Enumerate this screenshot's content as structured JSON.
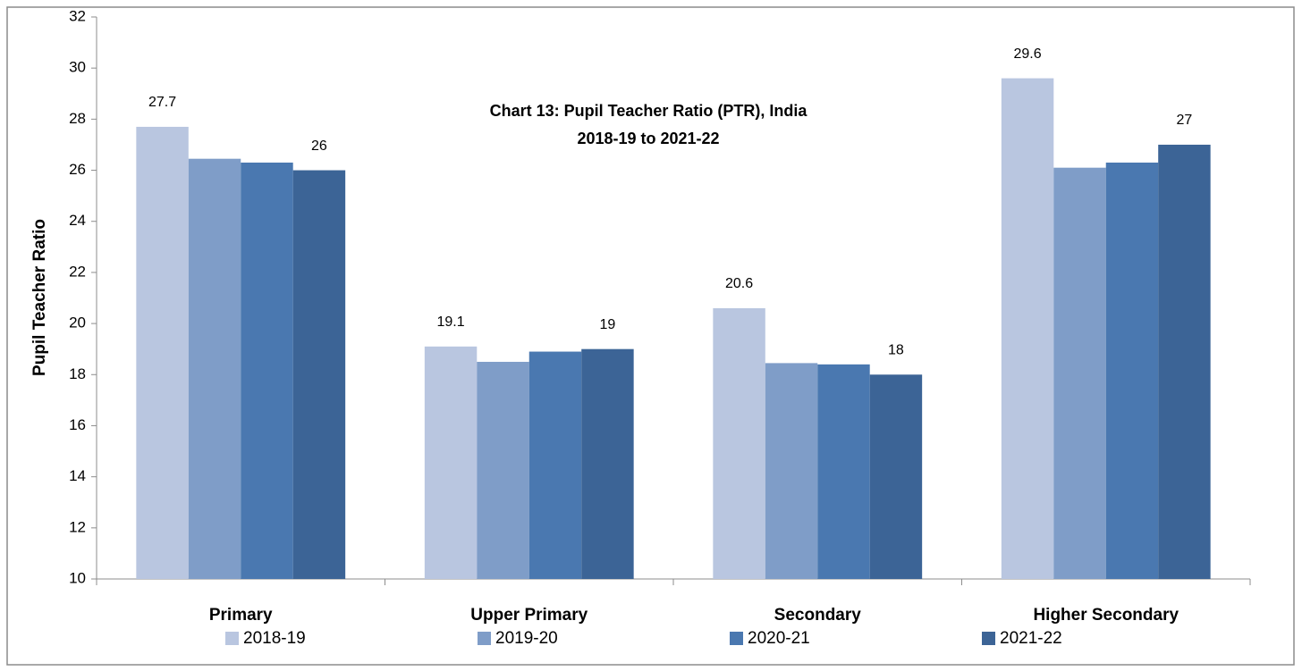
{
  "chart_data": {
    "type": "bar",
    "title": "Chart 13: Pupil Teacher Ratio (PTR), India",
    "subtitle": "2018-19 to 2021-22",
    "y_label": "Pupil Teacher Ratio",
    "categories": [
      "Primary",
      "Upper Primary",
      "Secondary",
      "Higher Secondary"
    ],
    "series": [
      {
        "name": "2018-19",
        "color": "#b9c6e0",
        "values": [
          27.7,
          19.1,
          20.6,
          29.6
        ],
        "data_labels": true
      },
      {
        "name": "2019-20",
        "color": "#7f9dc8",
        "values": [
          26.45,
          18.5,
          18.45,
          26.1
        ],
        "data_labels": false
      },
      {
        "name": "2020-21",
        "color": "#4a78b0",
        "values": [
          26.3,
          18.9,
          18.4,
          26.3
        ],
        "data_labels": false
      },
      {
        "name": "2021-22",
        "color": "#3c6496",
        "values": [
          26,
          19,
          18,
          27
        ],
        "data_labels": true
      }
    ],
    "ylim": [
      10,
      32
    ],
    "yticks": [
      10,
      12,
      14,
      16,
      18,
      20,
      22,
      24,
      26,
      28,
      30,
      32
    ],
    "grid": false,
    "legend": "bottom"
  }
}
